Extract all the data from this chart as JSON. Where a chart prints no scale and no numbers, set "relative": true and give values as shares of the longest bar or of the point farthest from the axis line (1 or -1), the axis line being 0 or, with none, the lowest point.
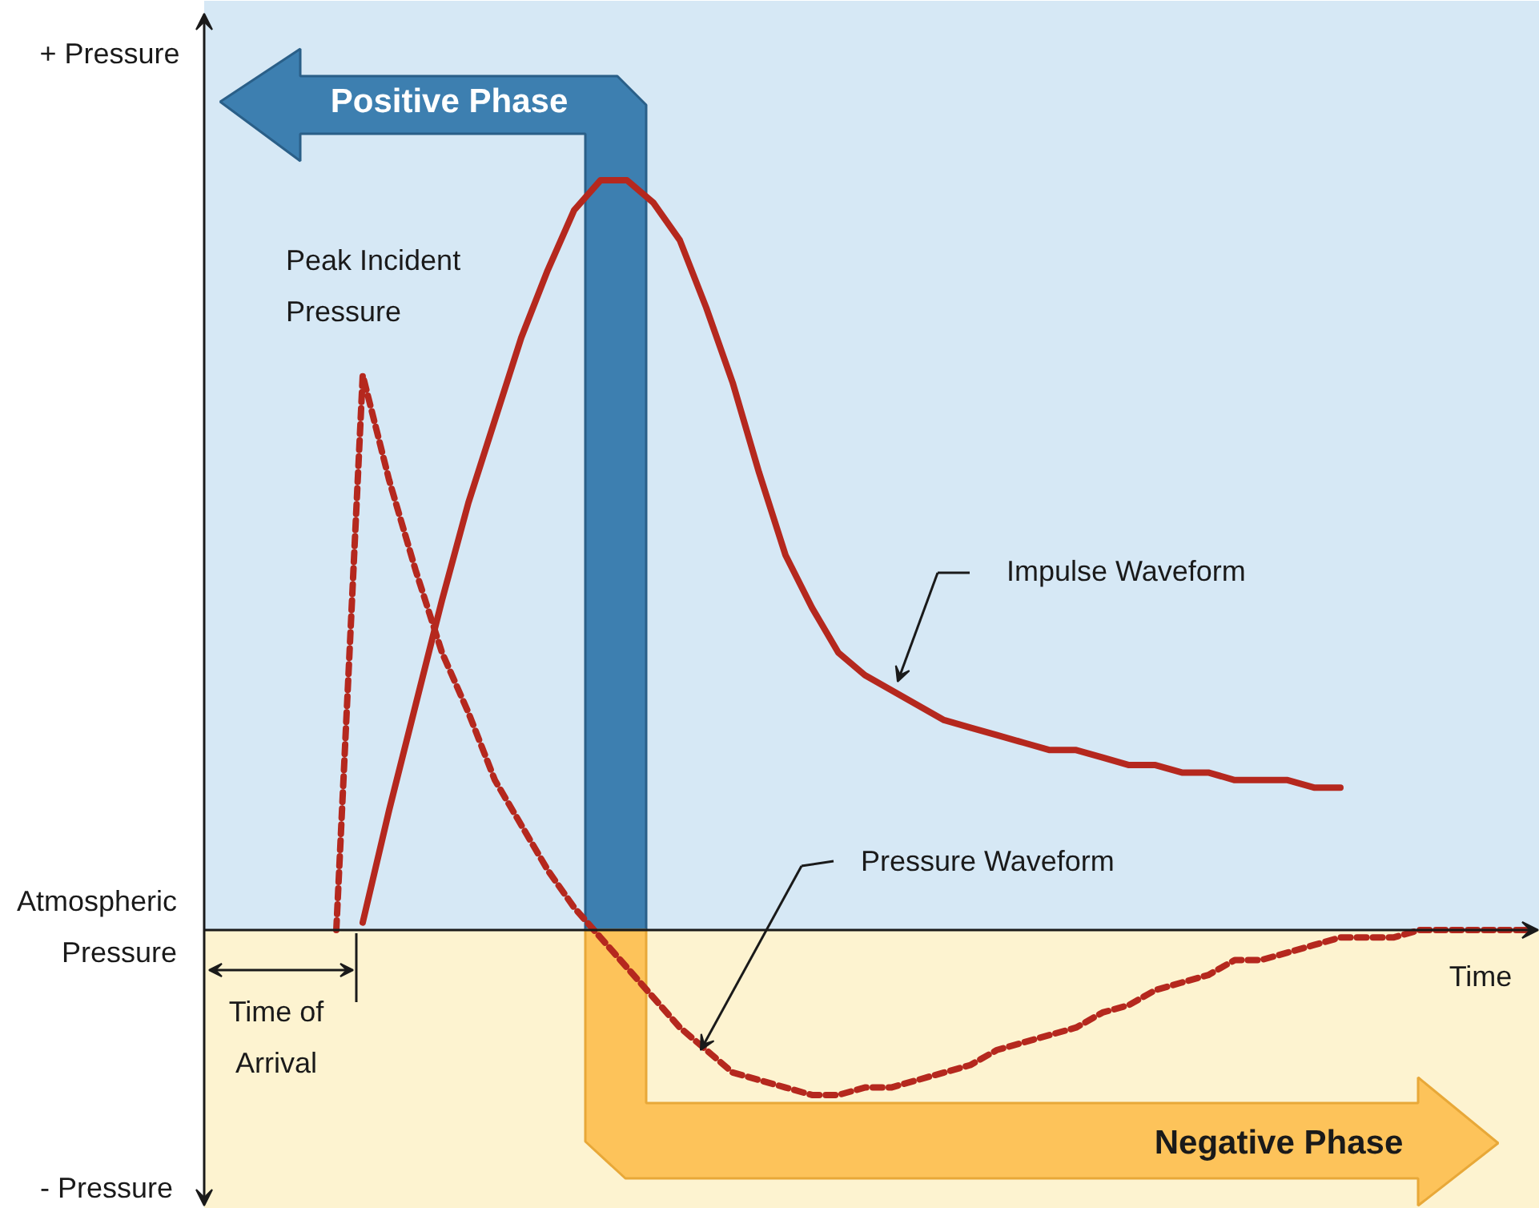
{
  "chart_data": {
    "type": "line",
    "relative": true,
    "xlabel": "Time",
    "categories": [
      null,
      null,
      null,
      null,
      null,
      null,
      null,
      null,
      null,
      null,
      null,
      null,
      null,
      null,
      null,
      null,
      null,
      null,
      null,
      null,
      null,
      null,
      null,
      null,
      null,
      null,
      null,
      null,
      null,
      null,
      null,
      null,
      null,
      null,
      null,
      null,
      null,
      null,
      null,
      null,
      null,
      null,
      null,
      null,
      null,
      null,
      null,
      null,
      null,
      null,
      null
    ],
    "series": [
      {
        "color": "#b5281e",
        "line_style": "solid",
        "values": [
          null,
          null,
          null,
          null,
          null,
          null,
          0.01,
          0.16,
          0.3,
          0.44,
          0.57,
          0.68,
          0.79,
          0.88,
          0.96,
          1.0,
          1.0,
          0.97,
          0.92,
          0.83,
          0.73,
          0.61,
          0.5,
          0.43,
          0.37,
          0.34,
          0.32,
          0.3,
          0.28,
          0.27,
          0.26,
          0.25,
          0.24,
          0.24,
          0.23,
          0.22,
          0.22,
          0.21,
          0.21,
          0.2,
          0.2,
          0.2,
          0.19,
          0.19,
          null,
          null,
          null,
          null,
          null,
          null,
          null
        ]
      },
      {
        "color": "#b5281e",
        "line_style": "dashed",
        "values": [
          null,
          null,
          null,
          null,
          null,
          0,
          0.74,
          0.6,
          0.48,
          0.37,
          0.29,
          0.2,
          0.14,
          0.08,
          0.03,
          -0.01,
          -0.05,
          -0.09,
          -0.13,
          -0.16,
          -0.19,
          -0.2,
          -0.21,
          -0.22,
          -0.22,
          -0.21,
          -0.21,
          -0.2,
          -0.19,
          -0.18,
          -0.16,
          -0.15,
          -0.14,
          -0.13,
          -0.11,
          -0.1,
          -0.08,
          -0.07,
          -0.06,
          -0.04,
          -0.04,
          -0.03,
          -0.02,
          -0.01,
          -0.01,
          -0.01,
          0,
          0,
          0,
          0,
          0
        ]
      }
    ],
    "annotations": [
      "+ Pressure",
      "Atmospheric Pressure",
      "- Pressure",
      "Peak Incident Pressure",
      "Time of Arrival",
      "Positive Phase",
      "Negative Phase",
      "Impulse Waveform",
      "Pressure Waveform"
    ]
  }
}
